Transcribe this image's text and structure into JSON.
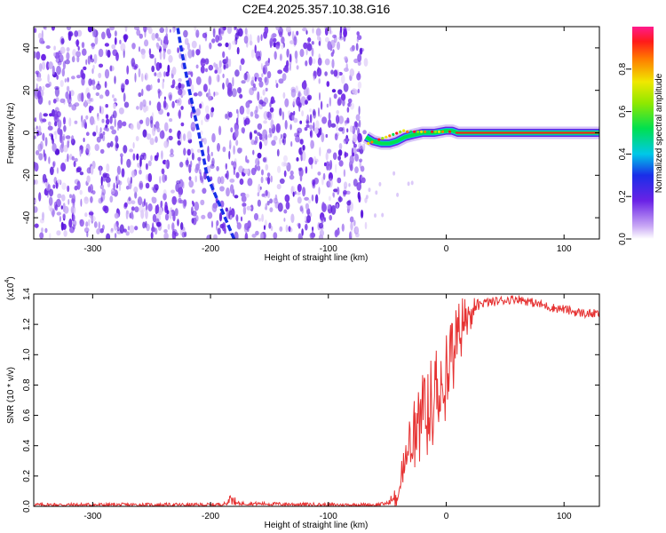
{
  "title": "C2E4.2025.357.10.38.G16",
  "chart_data": [
    {
      "type": "heatmap",
      "ylabel": "Frequency (Hz)",
      "xlabel": "Height of straight line (km)",
      "xlim": [
        -350,
        130
      ],
      "ylim": [
        -50,
        50
      ],
      "x_ticks": [
        -300,
        -200,
        -100,
        0,
        100
      ],
      "y_ticks": [
        -40,
        -20,
        0,
        20,
        40
      ],
      "colorbar": {
        "label": "Normalized spectral amplitude",
        "ticks": [
          "0.0",
          "0.2",
          "0.4",
          "0.6",
          "0.8"
        ],
        "range": [
          0,
          1
        ]
      },
      "features": {
        "noise_region_x": [
          -350,
          -68
        ],
        "diagonal_streak": [
          [
            -180,
            -50
          ],
          [
            -203,
            -20
          ],
          [
            -210,
            0
          ],
          [
            -218,
            20
          ],
          [
            -225,
            40
          ],
          [
            -228,
            50
          ]
        ],
        "carrier_track": [
          [
            -68,
            -2
          ],
          [
            -62,
            -4
          ],
          [
            -55,
            -5
          ],
          [
            -48,
            -5
          ],
          [
            -42,
            -4
          ],
          [
            -35,
            -2
          ],
          [
            -28,
            -1
          ],
          [
            -20,
            0
          ],
          [
            -10,
            0
          ],
          [
            0,
            1
          ],
          [
            5,
            1
          ],
          [
            10,
            0
          ],
          [
            130,
            0
          ]
        ]
      }
    },
    {
      "type": "line",
      "ylabel": "SNR (10 * v/v)",
      "xlabel": "Height of straight line (km)",
      "y_multiplier": "(x10",
      "y_multiplier_exp": "4",
      "xlim": [
        -350,
        130
      ],
      "ylim": [
        0,
        1.4
      ],
      "x_ticks": [
        -300,
        -200,
        -100,
        0,
        100
      ],
      "y_ticks": [
        "0.0",
        "0.2",
        "0.4",
        "0.6",
        "0.8",
        "1.0",
        "1.2",
        "1.4"
      ],
      "color": "#e63232",
      "series": [
        {
          "x": [
            -350,
            -250,
            -200,
            -180,
            -100,
            -60,
            -50,
            -45,
            -40,
            -35,
            -30,
            -25,
            -20,
            -15,
            -10,
            -5,
            0,
            5,
            10,
            15,
            20,
            25,
            30,
            40,
            50,
            60,
            70,
            80,
            90,
            100,
            110,
            120,
            130
          ],
          "values": [
            0.01,
            0.01,
            0.01,
            0.02,
            0.01,
            0.01,
            0.02,
            0.05,
            0.12,
            0.28,
            0.45,
            0.55,
            0.62,
            0.7,
            0.78,
            0.85,
            0.92,
            1.05,
            1.15,
            1.25,
            1.3,
            1.33,
            1.34,
            1.35,
            1.36,
            1.37,
            1.35,
            1.33,
            1.31,
            1.3,
            1.28,
            1.27,
            1.27
          ]
        }
      ]
    }
  ]
}
